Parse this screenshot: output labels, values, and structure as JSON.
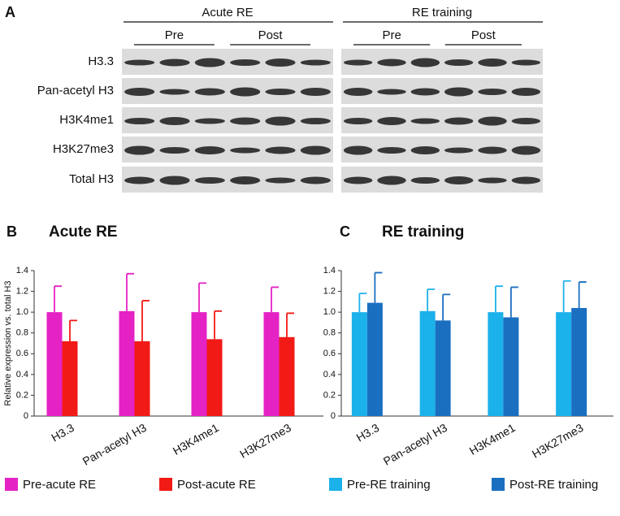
{
  "figure_label": "A",
  "blot": {
    "groups": [
      {
        "title": "Acute RE",
        "phases": [
          "Pre",
          "Post"
        ]
      },
      {
        "title": "RE training",
        "phases": [
          "Pre",
          "Post"
        ]
      }
    ],
    "rows": [
      "H3.3",
      "Pan-acetyl H3",
      "H3K4me1",
      "H3K27me3",
      "Total H3"
    ]
  },
  "chart_data": [
    {
      "type": "bar",
      "panel": "B",
      "title": "Acute RE",
      "y_label": "Relative expression vs. total H3",
      "categories": [
        "H3.3",
        "Pan-acetyl H3",
        "H3K4me1",
        "H3K27me3"
      ],
      "series": [
        {
          "name": "Pre-acute RE",
          "color": "#e522c4",
          "values": [
            1.0,
            1.01,
            1.0,
            1.0
          ],
          "errors": [
            0.25,
            0.36,
            0.28,
            0.24
          ]
        },
        {
          "name": "Post-acute RE",
          "color": "#f21a16",
          "values": [
            0.72,
            0.72,
            0.74,
            0.76
          ],
          "errors": [
            0.2,
            0.39,
            0.27,
            0.23
          ]
        }
      ],
      "ylim": [
        0,
        1.4
      ],
      "yticks": [
        0,
        0.2,
        0.4,
        0.6,
        0.8,
        {
          "value": 1,
          "label": "1.0"
        },
        1.2,
        1.4
      ]
    },
    {
      "type": "bar",
      "panel": "C",
      "title": "RE training",
      "categories": [
        "H3.3",
        "Pan-acetyl H3",
        "H3K4me1",
        "H3K27me3"
      ],
      "series": [
        {
          "name": "Pre-RE training",
          "color": "#1bb1eb",
          "values": [
            1.0,
            1.01,
            1.0,
            1.0
          ],
          "errors": [
            0.18,
            0.21,
            0.25,
            0.3
          ]
        },
        {
          "name": "Post-RE training",
          "color": "#1a6fc1",
          "values": [
            1.09,
            0.92,
            0.95,
            1.04
          ],
          "errors": [
            0.29,
            0.25,
            0.29,
            0.25
          ]
        }
      ],
      "ylim": [
        0,
        1.4
      ],
      "yticks": [
        0,
        0.2,
        0.4,
        0.6,
        0.8,
        {
          "value": 1,
          "label": "1.0"
        },
        1.2,
        1.4
      ]
    }
  ]
}
